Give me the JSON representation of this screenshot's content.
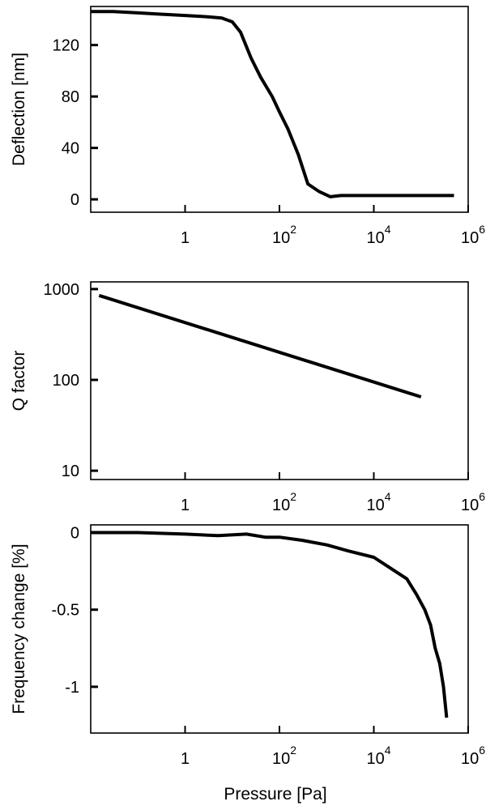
{
  "figure": {
    "line_color": "#000000",
    "background": "#ffffff"
  },
  "chart_data": [
    {
      "type": "line",
      "title": "",
      "xlabel": "",
      "ylabel": "Deflection [nm]",
      "x_scale": "log",
      "xlim": [
        0.01,
        1000000
      ],
      "ylim": [
        -10,
        150
      ],
      "x_ticks": [
        {
          "value": 1,
          "base": "1",
          "exp": ""
        },
        {
          "value": 100,
          "base": "10",
          "exp": "2"
        },
        {
          "value": 10000,
          "base": "10",
          "exp": "4"
        },
        {
          "value": 1000000,
          "base": "10",
          "exp": "6"
        }
      ],
      "y_ticks": [
        {
          "value": 0,
          "label": "0"
        },
        {
          "value": 40,
          "label": "40"
        },
        {
          "value": 80,
          "label": "80"
        },
        {
          "value": 120,
          "label": "120"
        }
      ],
      "grid": false,
      "series": [
        {
          "x": [
            0.01,
            0.03,
            0.1,
            0.3,
            1,
            3,
            6,
            10,
            15,
            25,
            40,
            70,
            100,
            150,
            250,
            400,
            700,
            1200,
            2000,
            5000,
            10000,
            30000,
            100000,
            500000
          ],
          "y": [
            146,
            146,
            145,
            144,
            143,
            142,
            141,
            138,
            130,
            110,
            95,
            80,
            68,
            55,
            35,
            12,
            6,
            2,
            3,
            3,
            3,
            3,
            3,
            3
          ]
        }
      ]
    },
    {
      "type": "line",
      "title": "",
      "xlabel": "",
      "ylabel": "Q factor",
      "x_scale": "log",
      "y_scale": "log",
      "xlim": [
        0.01,
        1000000
      ],
      "ylim": [
        8,
        1200
      ],
      "x_ticks": [
        {
          "value": 1,
          "base": "1",
          "exp": ""
        },
        {
          "value": 100,
          "base": "10",
          "exp": "2"
        },
        {
          "value": 10000,
          "base": "10",
          "exp": "4"
        },
        {
          "value": 1000000,
          "base": "10",
          "exp": "6"
        }
      ],
      "y_ticks": [
        {
          "value": 10,
          "label": "10"
        },
        {
          "value": 100,
          "label": "100"
        },
        {
          "value": 1000,
          "label": "1000"
        }
      ],
      "grid": false,
      "series": [
        {
          "x": [
            0.015,
            100000
          ],
          "y": [
            850,
            65
          ]
        }
      ]
    },
    {
      "type": "line",
      "title": "",
      "xlabel": "Pressure [Pa]",
      "ylabel": "Frequency change [%]",
      "x_scale": "log",
      "xlim": [
        0.01,
        1000000
      ],
      "ylim": [
        -1.3,
        0.05
      ],
      "x_ticks": [
        {
          "value": 1,
          "base": "1",
          "exp": ""
        },
        {
          "value": 100,
          "base": "10",
          "exp": "2"
        },
        {
          "value": 10000,
          "base": "10",
          "exp": "4"
        },
        {
          "value": 1000000,
          "base": "10",
          "exp": "6"
        }
      ],
      "y_ticks": [
        {
          "value": 0,
          "label": "0"
        },
        {
          "value": -0.5,
          "label": "-0.5"
        },
        {
          "value": -1,
          "label": "-1"
        }
      ],
      "grid": false,
      "series": [
        {
          "x": [
            0.01,
            0.1,
            1,
            5,
            20,
            50,
            100,
            300,
            1000,
            3000,
            10000,
            20000,
            50000,
            80000,
            120000,
            160000,
            200000,
            250000,
            300000,
            350000
          ],
          "y": [
            0,
            0,
            -0.01,
            -0.02,
            -0.01,
            -0.03,
            -0.03,
            -0.05,
            -0.08,
            -0.12,
            -0.16,
            -0.22,
            -0.3,
            -0.4,
            -0.5,
            -0.6,
            -0.75,
            -0.85,
            -1.0,
            -1.2
          ]
        }
      ]
    }
  ]
}
